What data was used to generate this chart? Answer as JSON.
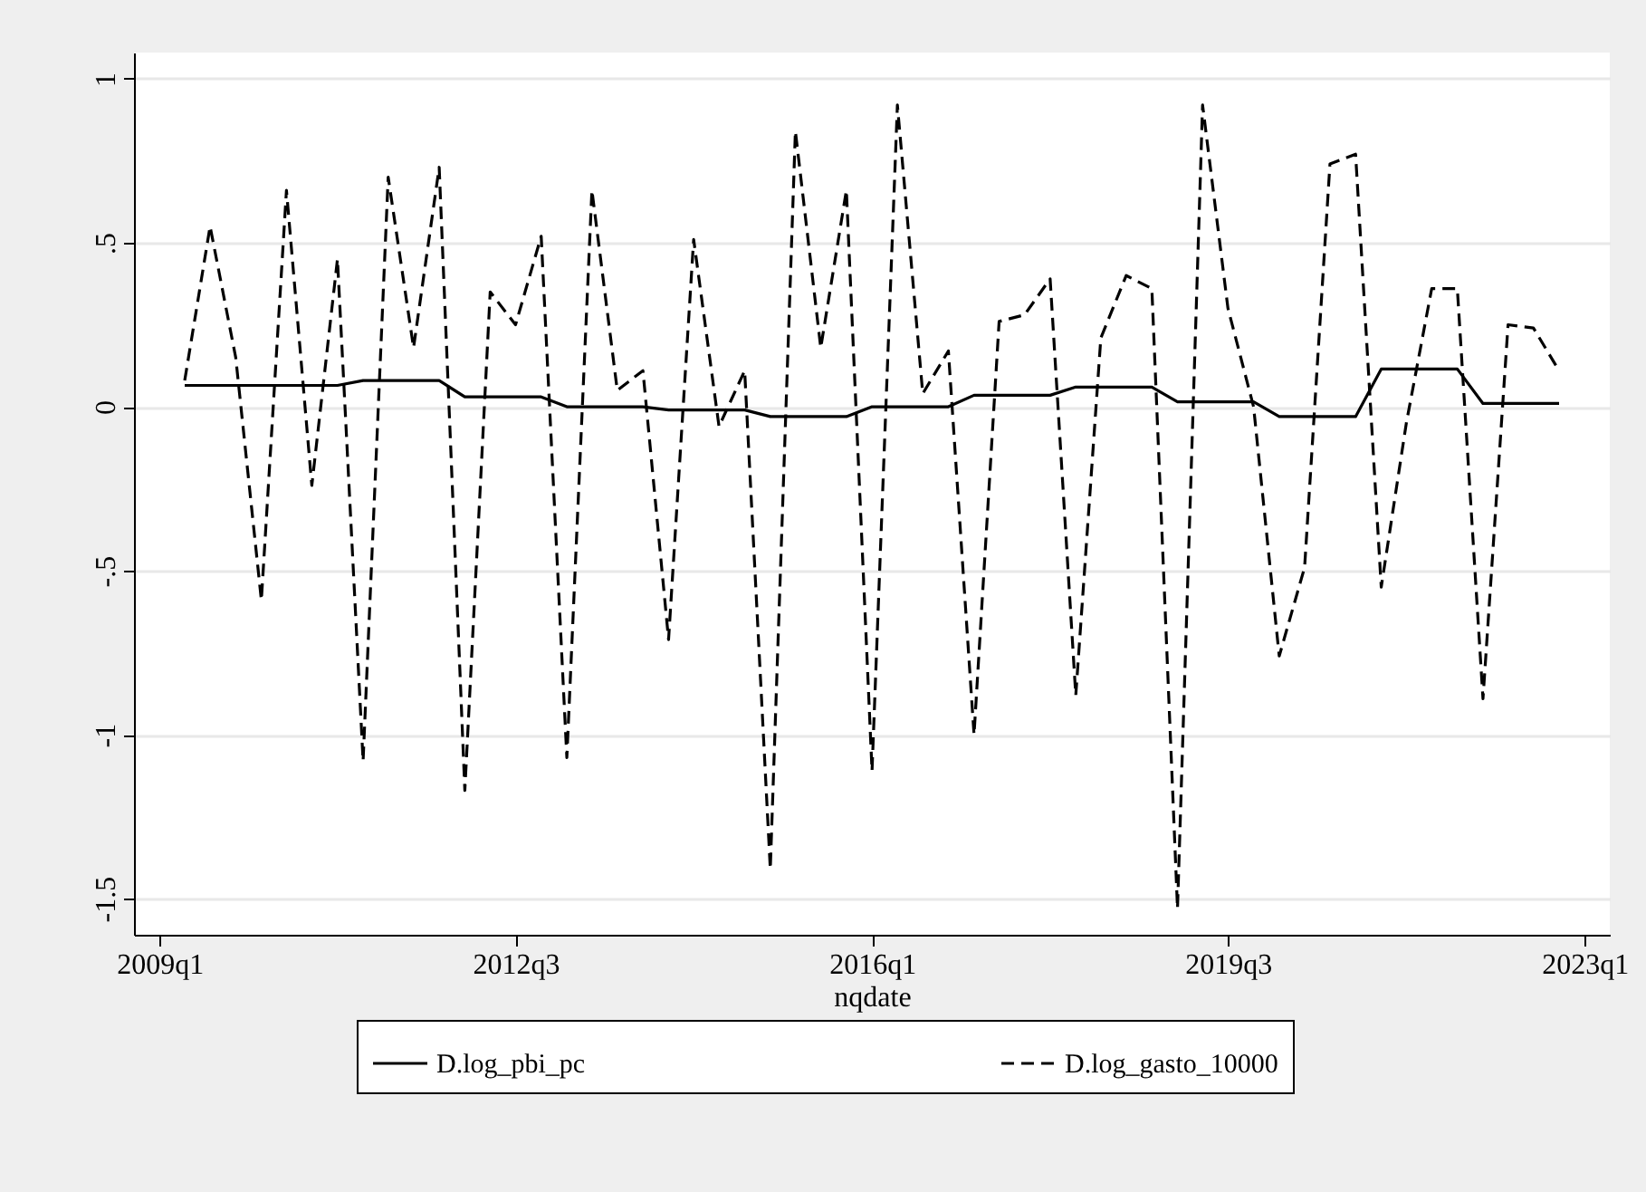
{
  "chart_data": {
    "type": "line",
    "xlabel": "nqdate",
    "x": [
      "2009-04",
      "2009-07",
      "2009-10",
      "2010-01",
      "2010-04",
      "2010-07",
      "2010-10",
      "2011-01",
      "2011-04",
      "2011-07",
      "2011-10",
      "2012-01",
      "2012-04",
      "2012-07",
      "2012-10",
      "2013-01",
      "2013-04",
      "2013-07",
      "2013-10",
      "2014-01",
      "2014-04",
      "2014-07",
      "2014-10",
      "2015-01",
      "2015-04",
      "2015-07",
      "2015-10",
      "2016-01",
      "2016-04",
      "2016-07",
      "2016-10",
      "2017-01",
      "2017-04",
      "2017-07",
      "2017-10",
      "2018-01",
      "2018-04",
      "2018-07",
      "2018-10",
      "2019-01",
      "2019-04",
      "2019-07",
      "2019-10",
      "2020-01",
      "2020-04",
      "2020-07",
      "2020-10",
      "2021-01",
      "2021-04",
      "2021-07",
      "2021-10",
      "2022-01",
      "2022-04",
      "2022-07",
      "2022-10"
    ],
    "series": [
      {
        "name": "D.log_pbi_pc",
        "color": "#000000",
        "line_style": "solid",
        "values": [
          0.065,
          0.065,
          0.065,
          0.065,
          0.065,
          0.065,
          0.065,
          0.08,
          0.08,
          0.08,
          0.08,
          0.03,
          0.03,
          0.03,
          0.03,
          0,
          0,
          0,
          0,
          -0.01,
          -0.01,
          -0.01,
          -0.01,
          -0.03,
          -0.03,
          -0.03,
          -0.03,
          0,
          0,
          0,
          0,
          0.035,
          0.035,
          0.035,
          0.035,
          0.06,
          0.06,
          0.06,
          0.06,
          0.015,
          0.015,
          0.015,
          0.015,
          -0.03,
          -0.03,
          -0.03,
          -0.03,
          0.115,
          0.115,
          0.115,
          0.115,
          0.01,
          0.01,
          0.01,
          0.01
        ]
      },
      {
        "name": "D.log_gasto_10000",
        "color": "#000000",
        "line_style": "dashed",
        "values": [
          0.08,
          0.55,
          0.15,
          -0.59,
          0.66,
          -0.24,
          0.45,
          -1.08,
          0.7,
          0.18,
          0.73,
          -1.17,
          0.35,
          0.25,
          0.52,
          -1.07,
          0.66,
          0.05,
          0.11,
          -0.71,
          0.51,
          -0.06,
          0.11,
          -1.41,
          0.84,
          0.18,
          0.66,
          -1.11,
          0.92,
          0.04,
          0.17,
          -1.0,
          0.26,
          0.28,
          0.39,
          -0.88,
          0.21,
          0.4,
          0.36,
          -1.53,
          0.92,
          0.3,
          0.0,
          -0.76,
          -0.49,
          0.74,
          0.77,
          -0.55,
          -0.05,
          0.36,
          0.36,
          -0.89,
          0.25,
          0.24,
          0.11
        ]
      }
    ],
    "xlim": [
      "2008-10",
      "2023-04"
    ],
    "xticks": [
      {
        "value": "2009-01",
        "label": "2009q1"
      },
      {
        "value": "2012-07",
        "label": "2012q3"
      },
      {
        "value": "2016-01",
        "label": "2016q1"
      },
      {
        "value": "2019-07",
        "label": "2019q3"
      },
      {
        "value": "2023-01",
        "label": "2023q1"
      }
    ],
    "ylim": [
      -1.61,
      1.08
    ],
    "yticks": [
      {
        "value": -1.5,
        "label": "-1.5"
      },
      {
        "value": -1,
        "label": "-1"
      },
      {
        "value": -0.5,
        "label": "-.5"
      },
      {
        "value": 0,
        "label": "0"
      },
      {
        "value": 0.5,
        "label": ".5"
      },
      {
        "value": 1,
        "label": "1"
      }
    ],
    "grid": "y",
    "legend": "bottom"
  }
}
